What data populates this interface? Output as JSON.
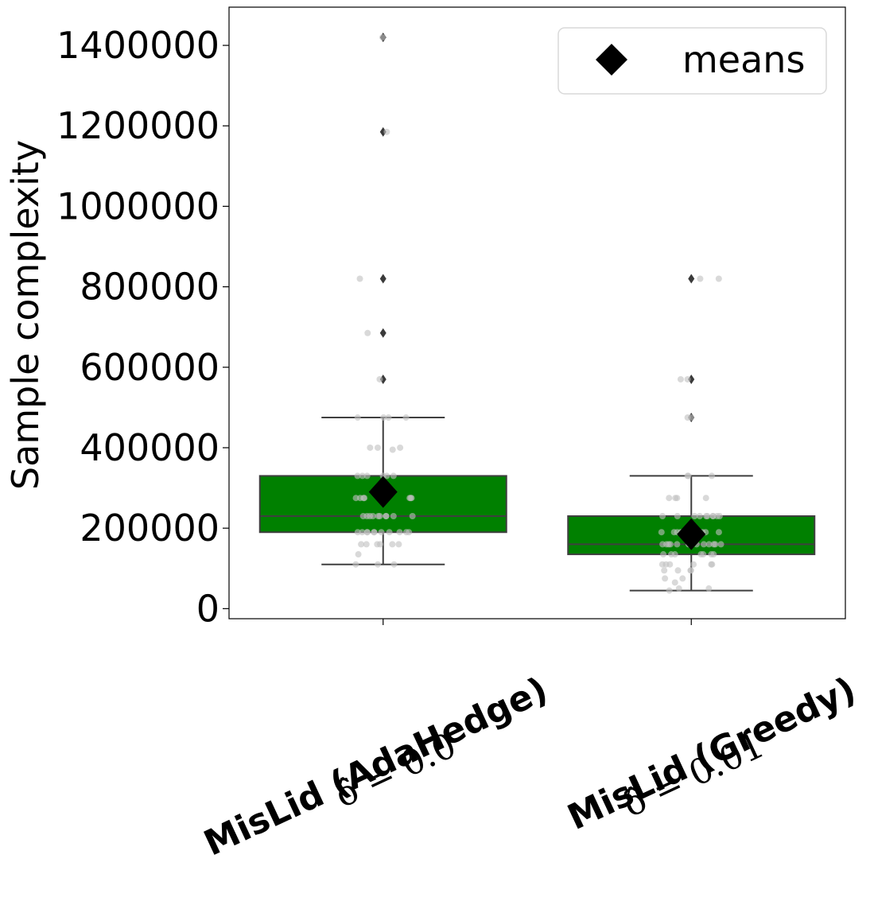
{
  "chart_data": {
    "type": "box",
    "ylabel": "Sample complexity",
    "ylim": [
      -25000,
      1495000
    ],
    "yticks": [
      0,
      200000,
      400000,
      600000,
      800000,
      1000000,
      1200000,
      1400000
    ],
    "ytick_labels": [
      "0",
      "200000",
      "400000",
      "600000",
      "800000",
      "1000000",
      "1200000",
      "1400000"
    ],
    "legend": {
      "position": "top-right",
      "label": "means"
    },
    "colors": {
      "box": "#008000",
      "edge": "#3f3f3f",
      "points": "#bfbfbf",
      "mean": "#000000"
    },
    "categories": [
      {
        "label": "MisLid (AdaHedge)",
        "sublabel": "δ̂ = 0.0",
        "q1": 190000,
        "median": 230000,
        "q3": 330000,
        "whisker_low": 110000,
        "whisker_high": 475000,
        "mean": 290000,
        "outliers": [
          1420000,
          1185000,
          820000,
          685000,
          570000
        ],
        "points": [
          1420000,
          1185000,
          820000,
          685000,
          570000,
          475000,
          475000,
          475000,
          475000,
          400000,
          400000,
          400000,
          395000,
          330000,
          330000,
          330000,
          330000,
          330000,
          330000,
          275000,
          275000,
          275000,
          275000,
          275000,
          275000,
          275000,
          275000,
          275000,
          230000,
          230000,
          230000,
          230000,
          230000,
          230000,
          230000,
          230000,
          230000,
          230000,
          190000,
          190000,
          190000,
          190000,
          190000,
          190000,
          190000,
          190000,
          190000,
          190000,
          190000,
          160000,
          160000,
          160000,
          160000,
          160000,
          160000,
          135000,
          110000,
          110000,
          110000
        ]
      },
      {
        "label": "MisLid (Greedy)",
        "sublabel": "δ̂ = 0.01",
        "q1": 135000,
        "median": 160000,
        "q3": 230000,
        "whisker_low": 45000,
        "whisker_high": 330000,
        "mean": 185000,
        "outliers": [
          820000,
          570000,
          475000
        ],
        "points": [
          820000,
          820000,
          570000,
          570000,
          475000,
          475000,
          330000,
          330000,
          330000,
          275000,
          275000,
          275000,
          275000,
          230000,
          230000,
          230000,
          230000,
          230000,
          230000,
          230000,
          230000,
          230000,
          230000,
          190000,
          190000,
          190000,
          190000,
          190000,
          190000,
          190000,
          190000,
          190000,
          190000,
          190000,
          190000,
          160000,
          160000,
          160000,
          160000,
          160000,
          160000,
          160000,
          160000,
          160000,
          160000,
          160000,
          160000,
          160000,
          135000,
          135000,
          135000,
          135000,
          135000,
          135000,
          135000,
          110000,
          110000,
          110000,
          110000,
          110000,
          110000,
          95000,
          95000,
          95000,
          95000,
          75000,
          75000,
          65000,
          50000,
          50000,
          45000
        ]
      }
    ]
  }
}
